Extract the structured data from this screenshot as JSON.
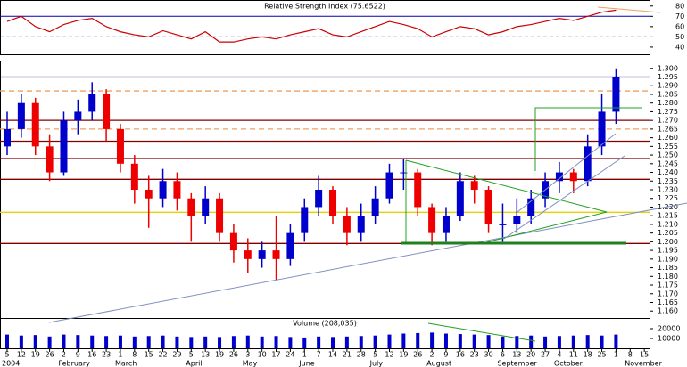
{
  "chart_data": {
    "type": "candlestick",
    "categories": [
      "5",
      "12",
      "19",
      "26",
      "2",
      "9",
      "16",
      "23",
      "1",
      "8",
      "15",
      "22",
      "29",
      "5",
      "13",
      "19",
      "26",
      "3",
      "10",
      "17",
      "24",
      "1",
      "7",
      "14",
      "21",
      "28",
      "5",
      "12",
      "19",
      "26",
      "2",
      "9",
      "16",
      "23",
      "30",
      "6",
      "13",
      "20",
      "27",
      "4",
      "11",
      "18",
      "25",
      "1",
      "8",
      "15"
    ],
    "month_labels": [
      "2004",
      null,
      null,
      null,
      "February",
      null,
      null,
      null,
      "March",
      null,
      null,
      null,
      null,
      "April",
      null,
      null,
      null,
      "May",
      null,
      null,
      null,
      "June",
      null,
      null,
      null,
      null,
      "July",
      null,
      null,
      null,
      "August",
      null,
      null,
      null,
      null,
      "September",
      null,
      null,
      null,
      "October",
      null,
      null,
      null,
      null,
      "November",
      null,
      null
    ],
    "open": [
      1.255,
      1.265,
      1.28,
      1.255,
      1.24,
      1.27,
      1.275,
      1.285,
      1.265,
      1.245,
      1.23,
      1.225,
      1.235,
      1.225,
      1.215,
      1.225,
      1.205,
      1.195,
      1.19,
      1.195,
      1.19,
      1.205,
      1.22,
      1.23,
      1.215,
      1.205,
      1.215,
      1.225,
      1.24,
      1.24,
      1.22,
      1.205,
      1.215,
      1.235,
      1.23,
      1.21,
      1.21,
      1.215,
      1.225,
      1.235,
      1.24,
      1.235,
      1.255,
      1.275,
      null,
      null
    ],
    "high": [
      1.275,
      1.285,
      1.283,
      1.262,
      1.275,
      1.282,
      1.292,
      1.288,
      1.268,
      1.25,
      1.238,
      1.242,
      1.24,
      1.228,
      1.232,
      1.228,
      1.21,
      1.202,
      1.2,
      1.215,
      1.21,
      1.225,
      1.238,
      1.232,
      1.22,
      1.222,
      1.232,
      1.245,
      1.248,
      1.242,
      1.222,
      1.22,
      1.24,
      1.238,
      1.232,
      1.222,
      1.225,
      1.23,
      1.24,
      1.246,
      1.242,
      1.262,
      1.285,
      1.3,
      null,
      null
    ],
    "low": [
      1.25,
      1.26,
      1.25,
      1.235,
      1.238,
      1.262,
      1.27,
      1.258,
      1.24,
      1.222,
      1.208,
      1.22,
      1.218,
      1.2,
      1.21,
      1.2,
      1.188,
      1.182,
      1.185,
      1.178,
      1.186,
      1.2,
      1.215,
      1.21,
      1.198,
      1.2,
      1.21,
      1.222,
      1.23,
      1.215,
      1.198,
      1.2,
      1.212,
      1.222,
      1.205,
      1.2,
      1.205,
      1.21,
      1.22,
      1.228,
      1.228,
      1.232,
      1.25,
      1.268,
      null,
      null
    ],
    "close": [
      1.265,
      1.28,
      1.255,
      1.24,
      1.27,
      1.275,
      1.285,
      1.265,
      1.245,
      1.23,
      1.225,
      1.235,
      1.225,
      1.215,
      1.225,
      1.205,
      1.195,
      1.19,
      1.195,
      1.19,
      1.205,
      1.22,
      1.23,
      1.215,
      1.205,
      1.215,
      1.225,
      1.24,
      1.24,
      1.22,
      1.205,
      1.215,
      1.235,
      1.23,
      1.21,
      1.21,
      1.215,
      1.225,
      1.235,
      1.24,
      1.235,
      1.255,
      1.275,
      1.295,
      null,
      null
    ],
    "up_color": "#0000cc",
    "down_color": "#ee0000",
    "ylim": [
      1.156,
      1.304
    ],
    "yticks": [
      {
        "value": 1.16,
        "label": "1.160"
      },
      {
        "value": 1.165,
        "label": "1.165"
      },
      {
        "value": 1.17,
        "label": "1.170"
      },
      {
        "value": 1.175,
        "label": "1.175"
      },
      {
        "value": 1.18,
        "label": "1.180"
      },
      {
        "value": 1.185,
        "label": "1.185"
      },
      {
        "value": 1.19,
        "label": "1.190"
      },
      {
        "value": 1.195,
        "label": "1.195"
      },
      {
        "value": 1.2,
        "label": "1.200"
      },
      {
        "value": 1.205,
        "label": "1.205"
      },
      {
        "value": 1.21,
        "label": "1.210"
      },
      {
        "value": 1.215,
        "label": "1.215"
      },
      {
        "value": 1.22,
        "label": "1.220"
      },
      {
        "value": 1.225,
        "label": "1.225"
      },
      {
        "value": 1.23,
        "label": "1.230"
      },
      {
        "value": 1.235,
        "label": "1.235"
      },
      {
        "value": 1.24,
        "label": "1.240"
      },
      {
        "value": 1.245,
        "label": "1.245"
      },
      {
        "value": 1.25,
        "label": "1.250"
      },
      {
        "value": 1.255,
        "label": "1.255"
      },
      {
        "value": 1.26,
        "label": "1.260"
      },
      {
        "value": 1.265,
        "label": "1.265"
      },
      {
        "value": 1.27,
        "label": "1.270"
      },
      {
        "value": 1.275,
        "label": "1.275"
      },
      {
        "value": 1.28,
        "label": "1.280"
      },
      {
        "value": 1.285,
        "label": "1.285"
      },
      {
        "value": 1.29,
        "label": "1.290"
      },
      {
        "value": 1.295,
        "label": "1.295"
      },
      {
        "value": 1.3,
        "label": "1.300"
      }
    ],
    "levels": [
      {
        "value": 1.295,
        "color": "#000080",
        "dashed": false
      },
      {
        "value": 1.287,
        "color": "#f0a060",
        "dashed": true
      },
      {
        "value": 1.27,
        "color": "#800000",
        "dashed": false
      },
      {
        "value": 1.265,
        "color": "#f0a060",
        "dashed": true
      },
      {
        "value": 1.258,
        "color": "#800000",
        "dashed": false
      },
      {
        "value": 1.248,
        "color": "#800000",
        "dashed": false
      },
      {
        "value": 1.236,
        "color": "#800000",
        "dashed": false
      },
      {
        "value": 1.217,
        "color": "#e8d000",
        "dashed": false
      },
      {
        "value": 1.199,
        "color": "#800000",
        "dashed": false
      }
    ],
    "rsi": {
      "title": "Relative Strength Index (75.6522)",
      "values": [
        65,
        70,
        60,
        55,
        62,
        66,
        68,
        60,
        55,
        52,
        50,
        56,
        52,
        48,
        55,
        45,
        45,
        48,
        50,
        48,
        52,
        55,
        58,
        52,
        50,
        55,
        60,
        65,
        62,
        58,
        50,
        55,
        60,
        58,
        52,
        55,
        60,
        62,
        65,
        68,
        66,
        70,
        74,
        76,
        null,
        null
      ],
      "color": "#cc0000",
      "ylim": [
        33,
        85
      ],
      "yticks": [
        40,
        50,
        60,
        70,
        80
      ],
      "levels": [
        {
          "value": 70,
          "dashed": false
        },
        {
          "value": 50,
          "dashed": true
        }
      ]
    },
    "volume": {
      "title": "Volume (208,035)",
      "values": [
        14000,
        13000,
        13500,
        12000,
        14000,
        13500,
        13000,
        12500,
        13000,
        12000,
        12500,
        13000,
        12000,
        11500,
        12000,
        11500,
        12500,
        13000,
        12000,
        12500,
        11500,
        11000,
        12000,
        11500,
        12000,
        12500,
        13000,
        14000,
        15000,
        15500,
        16000,
        15000,
        14500,
        14000,
        13500,
        12000,
        12500,
        13000,
        12000,
        12500,
        13000,
        13500,
        13000,
        14000,
        null,
        null
      ],
      "color": "#0000cc",
      "ylim": [
        0,
        30000
      ],
      "yticks": [
        10000,
        20000
      ]
    }
  }
}
